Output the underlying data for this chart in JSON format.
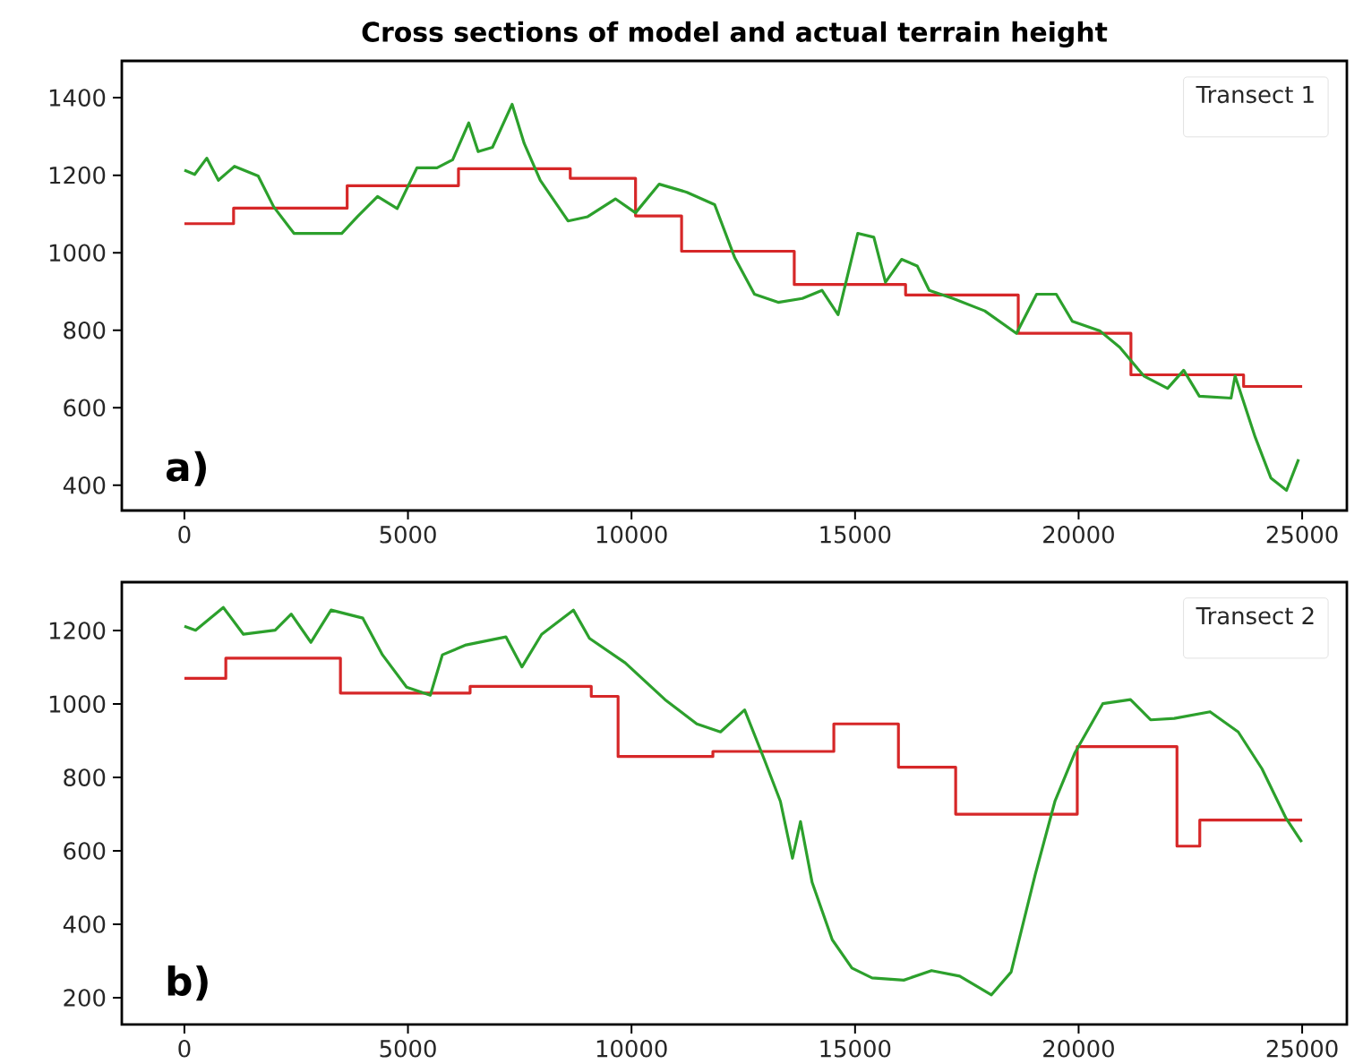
{
  "chart_data": [
    {
      "type": "line",
      "title": "Cross sections of model and actual terrain height",
      "legend_title": "Transect 1",
      "annotations": [
        "a)"
      ],
      "xlim": [
        -1400,
        26000
      ],
      "ylim": [
        335,
        1495
      ],
      "xticks": [
        0,
        5000,
        10000,
        15000,
        20000,
        25000
      ],
      "yticks": [
        400,
        600,
        800,
        1000,
        1200,
        1400
      ],
      "series": [
        {
          "type": "step",
          "color": "#d62728",
          "x": [
            0,
            1100,
            3640,
            6130,
            8630,
            10090,
            11120,
            13640,
            16130,
            18650,
            21170,
            23690,
            25000
          ],
          "values": [
            1075,
            1115,
            1173,
            1217,
            1192,
            1095,
            1004,
            918,
            891,
            792,
            685,
            655,
            655
          ]
        },
        {
          "color": "#2ca02c",
          "x": [
            0,
            230,
            500,
            760,
            1120,
            1650,
            2000,
            2450,
            2980,
            3520,
            3870,
            4320,
            4760,
            5200,
            5650,
            6000,
            6360,
            6570,
            6890,
            7330,
            7600,
            7960,
            8580,
            9020,
            9640,
            10090,
            10620,
            11240,
            11860,
            12310,
            12750,
            13280,
            13820,
            14260,
            14620,
            15060,
            15420,
            15680,
            16040,
            16390,
            16660,
            17190,
            17900,
            18610,
            19060,
            19500,
            19860,
            20480,
            20920,
            21460,
            21990,
            22350,
            22700,
            23410,
            23500,
            23950,
            24300,
            24650,
            24920
          ],
          "values": [
            1213,
            1202,
            1244,
            1187,
            1223,
            1198,
            1118,
            1050,
            1050,
            1050,
            1093,
            1145,
            1114,
            1219,
            1219,
            1240,
            1335,
            1261,
            1272,
            1383,
            1282,
            1187,
            1082,
            1093,
            1139,
            1103,
            1177,
            1156,
            1124,
            987,
            893,
            872,
            882,
            903,
            840,
            1050,
            1040,
            924,
            983,
            966,
            903,
            882,
            850,
            792,
            893,
            893,
            823,
            798,
            756,
            682,
            650,
            697,
            630,
            625,
            682,
            524,
            419,
            387,
            467
          ]
        }
      ]
    },
    {
      "type": "line",
      "legend_title": "Transect 2",
      "annotations": [
        "b)"
      ],
      "xlim": [
        -1400,
        26000
      ],
      "ylim": [
        127,
        1332
      ],
      "xticks": [
        0,
        5000,
        10000,
        15000,
        20000,
        25000
      ],
      "yticks": [
        200,
        400,
        600,
        800,
        1000,
        1200
      ],
      "series": [
        {
          "type": "step",
          "color": "#d62728",
          "x": [
            0,
            926,
            3490,
            6390,
            9100,
            9700,
            11820,
            14525,
            15970,
            17250,
            19970,
            22200,
            22710,
            25000
          ],
          "values": [
            1070,
            1125,
            1030,
            1048,
            1021,
            857,
            871,
            946,
            828,
            700,
            884,
            613,
            684,
            684
          ]
        },
        {
          "color": "#2ca02c",
          "x": [
            0,
            250,
            870,
            1320,
            2030,
            2390,
            2830,
            3280,
            3990,
            4430,
            4970,
            5500,
            5770,
            6300,
            7190,
            7550,
            7990,
            8700,
            9060,
            9860,
            10750,
            11460,
            11990,
            12530,
            12980,
            13330,
            13600,
            13780,
            14040,
            14490,
            14930,
            15380,
            16090,
            16710,
            17340,
            18050,
            18490,
            19030,
            19470,
            19920,
            20540,
            21160,
            21610,
            22140,
            22940,
            23570,
            24100,
            24630,
            24990
          ],
          "values": [
            1212,
            1201,
            1263,
            1190,
            1201,
            1245,
            1168,
            1256,
            1234,
            1134,
            1046,
            1024,
            1134,
            1161,
            1183,
            1101,
            1190,
            1256,
            1179,
            1112,
            1012,
            946,
            924,
            984,
            846,
            735,
            580,
            680,
            514,
            358,
            281,
            254,
            248,
            274,
            259,
            208,
            270,
            536,
            735,
            868,
            1001,
            1012,
            957,
            961,
            979,
            924,
            824,
            691,
            624
          ]
        }
      ]
    }
  ]
}
